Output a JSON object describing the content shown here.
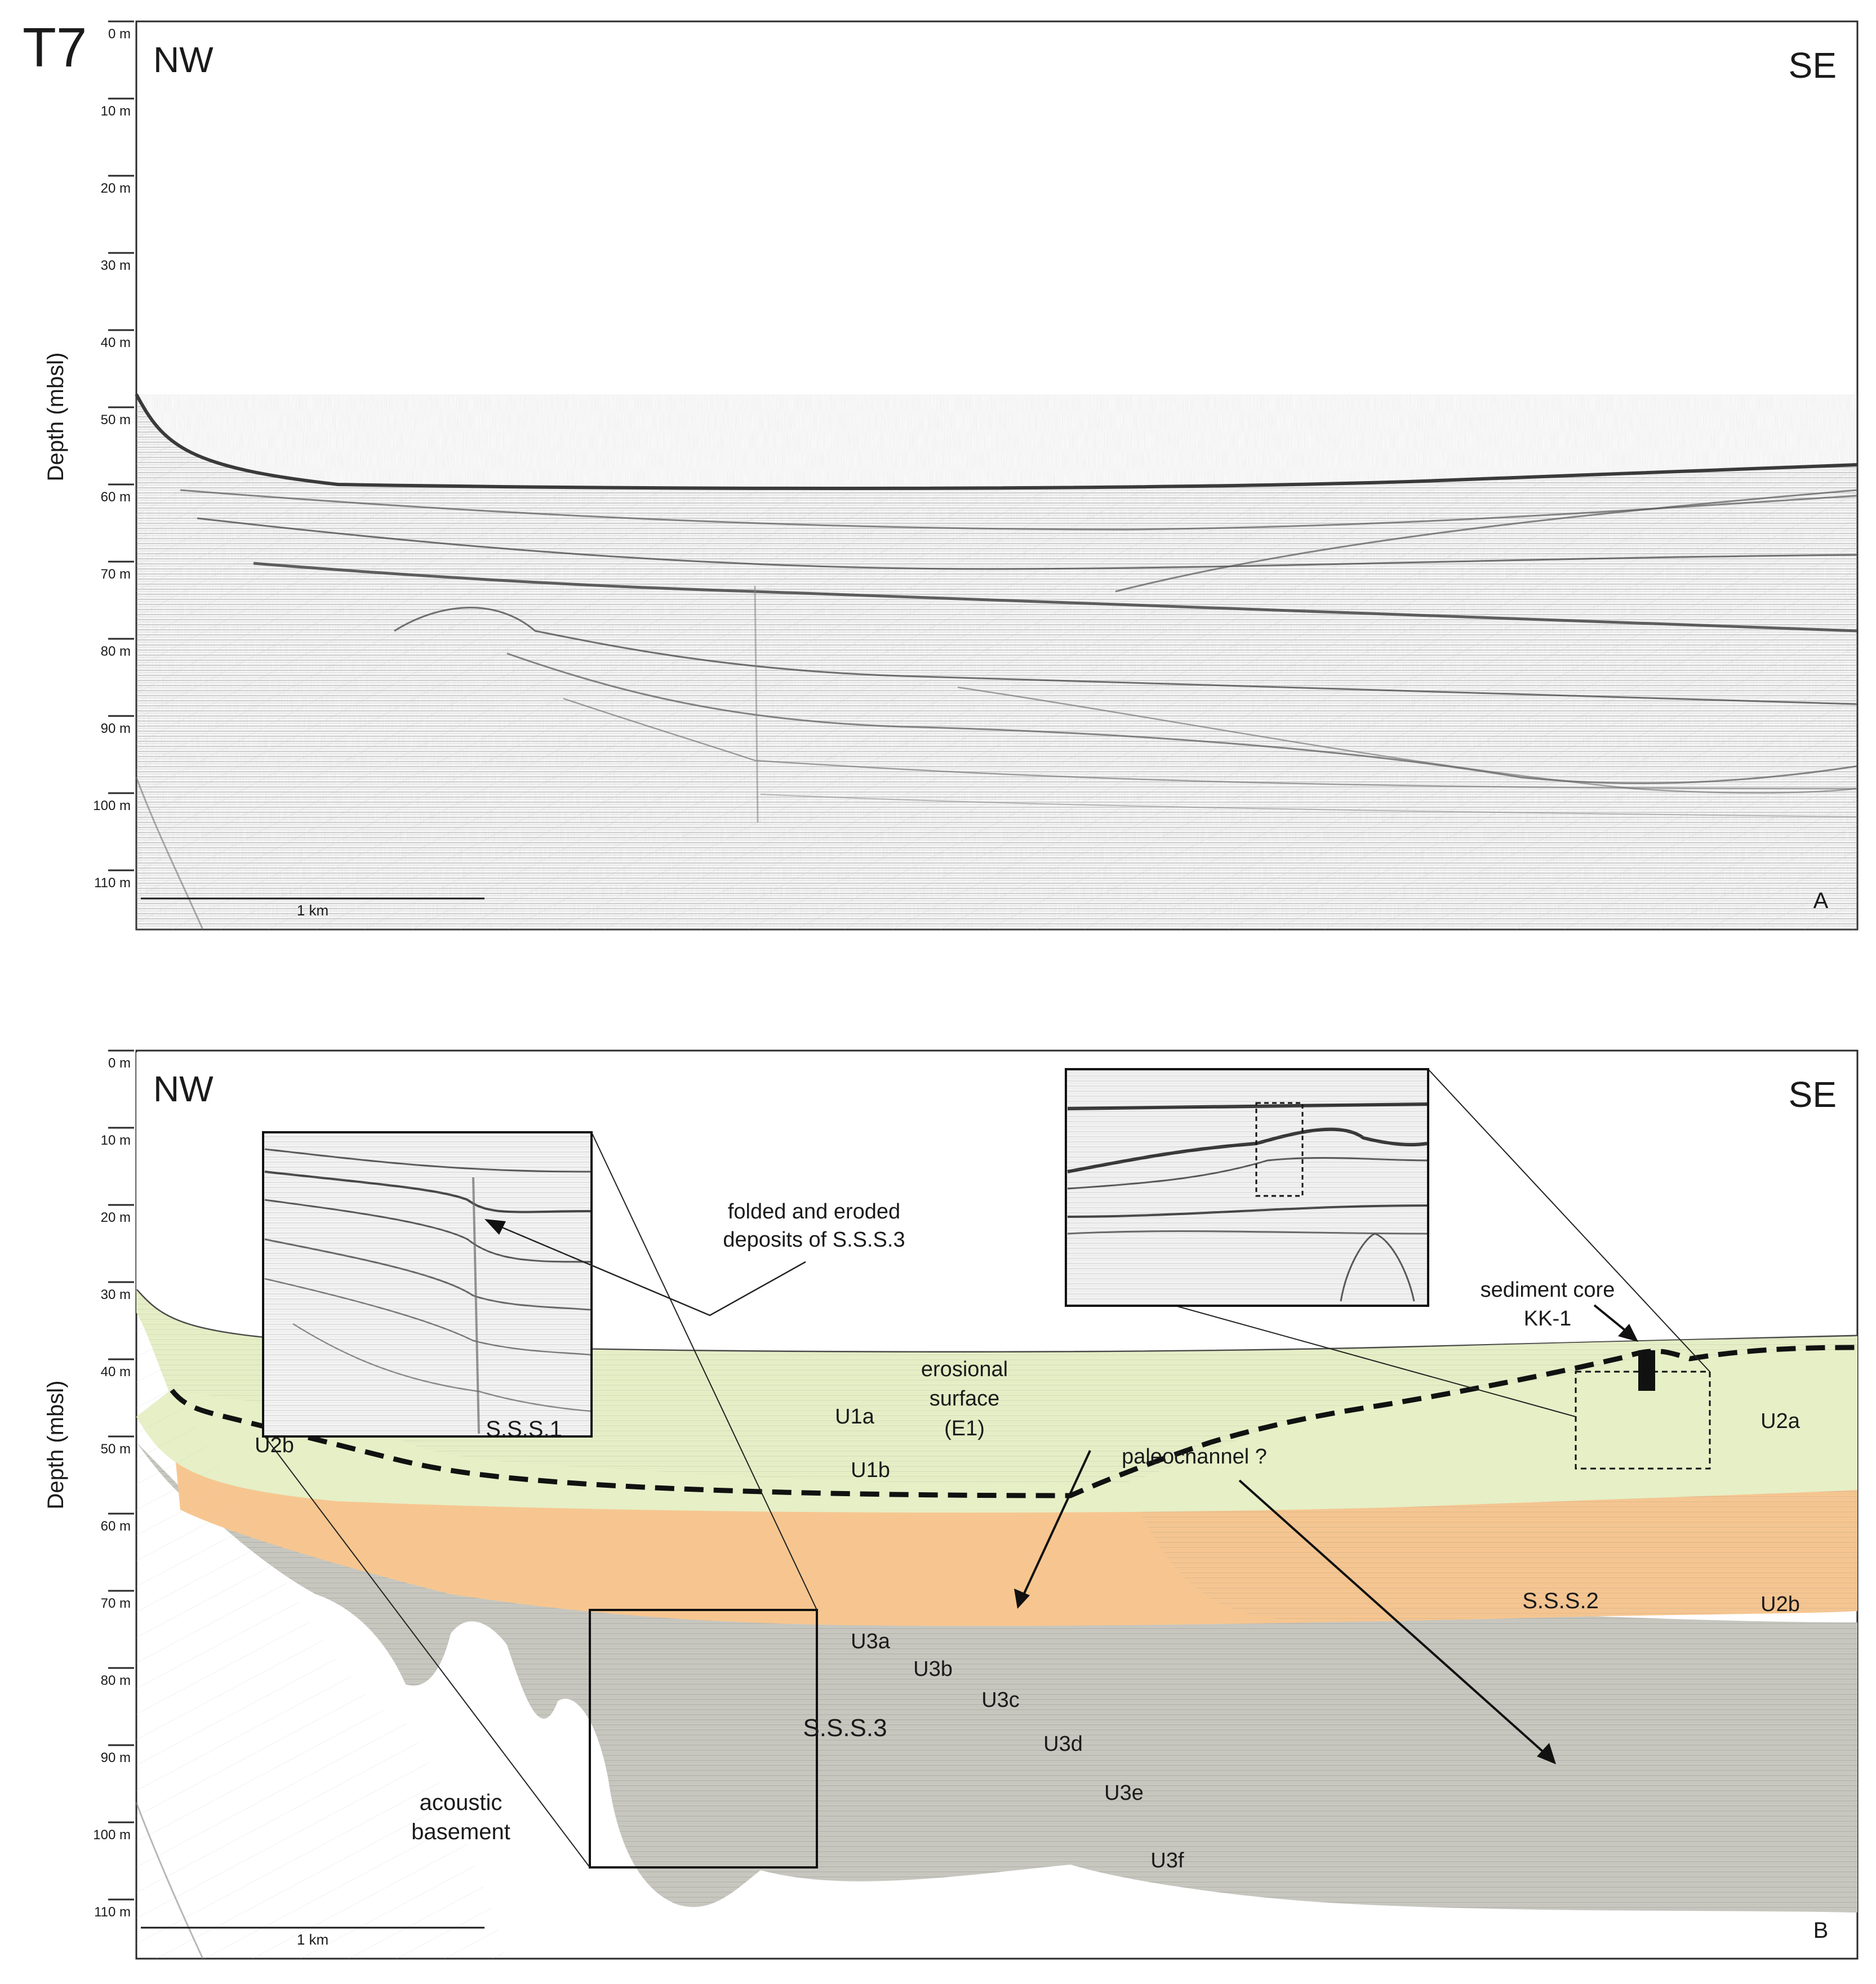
{
  "figure_label": "T7",
  "depth_axis": {
    "title": "Depth (mbsl)",
    "ticks": [
      "0 m",
      "10 m",
      "20 m",
      "30 m",
      "40 m",
      "50 m",
      "60 m",
      "70 m",
      "80 m",
      "90 m",
      "100 m",
      "110 m"
    ]
  },
  "panel_a": {
    "letter": "A",
    "direction_left": "NW",
    "direction_right": "SE",
    "scale_bar": "1 km"
  },
  "panel_b": {
    "letter": "B",
    "direction_left": "NW",
    "direction_right": "SE",
    "scale_bar": "1 km",
    "sequences": [
      "S.S.S.1",
      "S.S.S.2",
      "S.S.S.3"
    ],
    "units": [
      "U1a",
      "U1b",
      "U2a",
      "U2b",
      "U3a",
      "U3b",
      "U3c",
      "U3d",
      "U3e",
      "U3f"
    ],
    "annotations": {
      "folded": [
        "folded and eroded",
        "deposits of S.S.S.3"
      ],
      "erosional": [
        "erosional",
        "surface",
        "(E1)"
      ],
      "paleochannel": "paleochannel ?",
      "core": [
        "sediment core",
        "KK-1"
      ],
      "basement": [
        "acoustic",
        "basement"
      ]
    },
    "colors": {
      "sss1": "#e6efc6",
      "sss2": "#f7c690",
      "sss3": "#c8c8c0"
    }
  }
}
